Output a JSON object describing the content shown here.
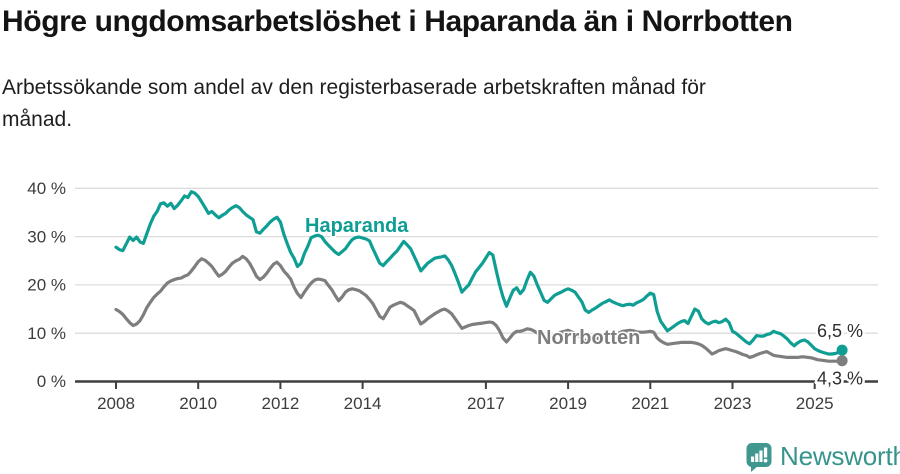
{
  "header": {
    "title": "Högre ungdomsarbetslöshet i Haparanda än i Norrbotten",
    "subtitle": "Arbetssökande som andel av den registerbaserade arbetskraften månad för\nmånad."
  },
  "colors": {
    "haparanda": "#0f9e93",
    "norrbotten": "#7e7e7e",
    "axis": "#3f3f3f",
    "grid": "#dcdcdc",
    "tick_text": "#3d3d3d",
    "logo_teal": "#37948d"
  },
  "footer": {
    "brand": "Newsworthy"
  },
  "chart_data": {
    "type": "line",
    "title": "Högre ungdomsarbetslöshet i Haparanda än i Norrbotten",
    "subtitle": "Arbetssökande som andel av den registerbaserade arbetskraften månad för månad.",
    "unit": "%",
    "x_start_year": 2008,
    "x_start_month": 1,
    "x_interval": "monthly",
    "x_end_year": 2025,
    "x_end_month": 9,
    "ylim": [
      0,
      42
    ],
    "grid": "horizontal",
    "legend_position": "inline-labels",
    "y_tick_labels": [
      "40 %",
      "30 %",
      "20 %",
      "10 %",
      "0 %"
    ],
    "y_tick_values": [
      40,
      30,
      20,
      10,
      0
    ],
    "x_tick_labels": [
      "2008",
      "2010",
      "2012",
      "2014",
      "2017",
      "2019",
      "2021",
      "2023",
      "2025"
    ],
    "x_tick_years": [
      2008,
      2010,
      2012,
      2014,
      2017,
      2019,
      2021,
      2023,
      2025
    ],
    "series": [
      {
        "name": "Haparanda",
        "color": "#0f9e93",
        "end_label": "6,5 %",
        "end_value": 6.5,
        "values": [
          27.8,
          27.3,
          27.1,
          28.5,
          29.9,
          29.2,
          29.9,
          28.9,
          28.6,
          30.6,
          32.6,
          34.2,
          35.2,
          36.8,
          37.0,
          36.3,
          36.9,
          35.8,
          36.5,
          37.4,
          38.4,
          38.1,
          39.3,
          39.0,
          38.3,
          37.2,
          36.0,
          34.8,
          35.2,
          34.5,
          33.9,
          34.4,
          34.8,
          35.5,
          36.0,
          36.4,
          36.0,
          35.2,
          34.5,
          34.0,
          33.5,
          31.0,
          30.7,
          31.5,
          32.2,
          33.0,
          33.6,
          34.0,
          33.0,
          30.5,
          28.5,
          26.7,
          25.5,
          23.8,
          24.5,
          26.5,
          28.0,
          29.8,
          30.1,
          30.3,
          30.0,
          29.0,
          28.2,
          27.5,
          26.8,
          26.3,
          26.9,
          27.5,
          28.5,
          29.4,
          29.8,
          29.9,
          29.7,
          29.5,
          29.1,
          27.5,
          26.0,
          24.5,
          24.0,
          24.8,
          25.5,
          26.3,
          27.0,
          28.0,
          29.0,
          28.3,
          27.5,
          26.0,
          24.5,
          22.9,
          23.7,
          24.5,
          25.0,
          25.5,
          25.7,
          25.8,
          26.0,
          25.2,
          24.0,
          22.3,
          20.5,
          18.5,
          19.3,
          20.0,
          21.4,
          22.7,
          23.6,
          24.5,
          25.6,
          26.7,
          26.2,
          23.0,
          20.0,
          17.5,
          15.6,
          17.3,
          18.9,
          19.4,
          18.2,
          19.0,
          21.0,
          22.6,
          21.8,
          20.0,
          18.4,
          16.8,
          16.4,
          17.1,
          17.8,
          18.2,
          18.5,
          18.9,
          19.2,
          18.9,
          18.5,
          17.5,
          16.5,
          14.8,
          14.3,
          14.8,
          15.2,
          15.7,
          16.2,
          16.5,
          16.9,
          16.5,
          16.2,
          15.9,
          15.7,
          15.9,
          16.0,
          15.8,
          16.3,
          16.6,
          17.0,
          17.7,
          18.3,
          18.0,
          14.5,
          12.5,
          11.5,
          10.5,
          11.0,
          11.5,
          12.0,
          12.4,
          12.6,
          12.0,
          13.5,
          15.0,
          14.6,
          13.0,
          12.3,
          11.9,
          12.3,
          12.5,
          12.2,
          12.4,
          12.9,
          12.2,
          10.4,
          10.0,
          9.4,
          8.8,
          8.2,
          7.8,
          8.6,
          9.5,
          9.4,
          9.4,
          9.7,
          9.9,
          10.4,
          10.1,
          9.9,
          9.4,
          8.8,
          8.0,
          7.4,
          8.0,
          8.4,
          8.6,
          8.2,
          7.5,
          6.8,
          6.4,
          6.1,
          5.9,
          5.7,
          5.7,
          5.8,
          6.0,
          6.5
        ]
      },
      {
        "name": "Norrbotten",
        "color": "#7e7e7e",
        "end_label": "4,3 %",
        "end_value": 4.3,
        "values": [
          14.9,
          14.5,
          13.9,
          13.0,
          12.2,
          11.6,
          11.9,
          12.6,
          13.8,
          15.3,
          16.4,
          17.4,
          18.1,
          18.7,
          19.6,
          20.4,
          20.8,
          21.1,
          21.3,
          21.4,
          21.8,
          22.1,
          22.9,
          23.8,
          24.8,
          25.4,
          25.1,
          24.5,
          23.8,
          22.8,
          21.8,
          22.2,
          22.8,
          23.7,
          24.5,
          25.0,
          25.3,
          25.9,
          25.4,
          24.5,
          23.2,
          21.8,
          21.1,
          21.6,
          22.4,
          23.4,
          24.3,
          24.7,
          24.0,
          22.9,
          22.1,
          21.2,
          19.5,
          18.2,
          17.4,
          18.5,
          19.5,
          20.4,
          21.0,
          21.2,
          21.1,
          20.9,
          19.9,
          19.0,
          17.8,
          16.7,
          17.5,
          18.5,
          19.0,
          19.2,
          19.0,
          18.8,
          18.3,
          17.8,
          17.0,
          16.1,
          14.8,
          13.5,
          13.0,
          14.2,
          15.4,
          15.8,
          16.1,
          16.4,
          16.2,
          15.7,
          15.2,
          14.7,
          13.3,
          11.9,
          12.4,
          13.0,
          13.5,
          14.0,
          14.4,
          14.8,
          15.0,
          14.6,
          14.0,
          13.0,
          12.0,
          11.0,
          11.3,
          11.6,
          11.8,
          11.9,
          12.0,
          12.1,
          12.2,
          12.3,
          12.2,
          11.6,
          10.5,
          9.0,
          8.2,
          9.0,
          9.9,
          10.4,
          10.4,
          10.6,
          10.9,
          10.8,
          10.5,
          10.0,
          9.5,
          8.8,
          8.5,
          9.1,
          9.7,
          10.0,
          10.2,
          10.4,
          10.6,
          10.3,
          10.0,
          9.5,
          9.0,
          8.5,
          8.3,
          8.6,
          8.8,
          9.0,
          9.2,
          9.4,
          9.6,
          9.7,
          9.8,
          10.1,
          10.4,
          10.5,
          10.6,
          10.5,
          10.3,
          10.2,
          10.2,
          10.3,
          10.4,
          10.2,
          9.0,
          8.4,
          8.0,
          7.7,
          7.8,
          7.9,
          8.0,
          8.1,
          8.1,
          8.1,
          8.1,
          8.0,
          7.8,
          7.5,
          7.0,
          6.4,
          5.7,
          6.0,
          6.4,
          6.6,
          6.8,
          6.6,
          6.4,
          6.2,
          5.9,
          5.6,
          5.4,
          5.0,
          5.2,
          5.5,
          5.8,
          6.0,
          6.2,
          5.8,
          5.4,
          5.3,
          5.2,
          5.1,
          5.0,
          5.0,
          5.0,
          5.0,
          5.1,
          5.1,
          5.0,
          4.9,
          4.7,
          4.5,
          4.4,
          4.3,
          4.2,
          4.2,
          4.2,
          4.2,
          4.3
        ]
      }
    ]
  }
}
